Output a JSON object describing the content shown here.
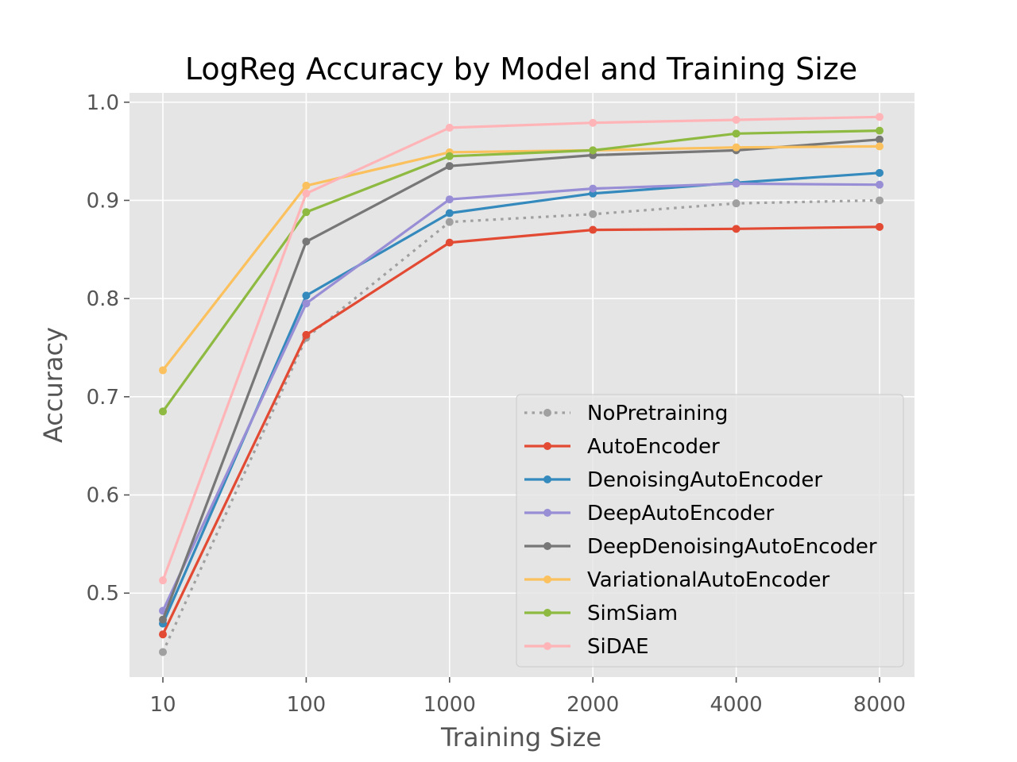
{
  "chart_data": {
    "type": "line",
    "title": "LogReg Accuracy by Model and Training Size",
    "xlabel": "Training Size",
    "ylabel": "Accuracy",
    "categories": [
      "10",
      "100",
      "1000",
      "2000",
      "4000",
      "8000"
    ],
    "y_ticks": [
      "0.5",
      "0.6",
      "0.7",
      "0.8",
      "0.9",
      "1.0"
    ],
    "ylim": [
      0.4145,
      1.0095
    ],
    "grid": true,
    "legend_position": "lower-right",
    "series": [
      {
        "name": "NoPretraining",
        "color": "#a0a0a0",
        "dashed": true,
        "values": [
          0.44,
          0.76,
          0.878,
          0.886,
          0.897,
          0.9
        ]
      },
      {
        "name": "AutoEncoder",
        "color": "#e24a33",
        "dashed": false,
        "values": [
          0.458,
          0.763,
          0.857,
          0.87,
          0.871,
          0.873
        ]
      },
      {
        "name": "DenoisingAutoEncoder",
        "color": "#348abd",
        "dashed": false,
        "values": [
          0.469,
          0.803,
          0.887,
          0.907,
          0.918,
          0.928
        ]
      },
      {
        "name": "DeepAutoEncoder",
        "color": "#988ed5",
        "dashed": false,
        "values": [
          0.482,
          0.795,
          0.901,
          0.912,
          0.917,
          0.916
        ]
      },
      {
        "name": "DeepDenoisingAutoEncoder",
        "color": "#777777",
        "dashed": false,
        "values": [
          0.473,
          0.858,
          0.935,
          0.946,
          0.951,
          0.962
        ]
      },
      {
        "name": "VariationalAutoEncoder",
        "color": "#fbc15e",
        "dashed": false,
        "values": [
          0.727,
          0.915,
          0.949,
          0.951,
          0.954,
          0.955
        ]
      },
      {
        "name": "SimSiam",
        "color": "#8eba42",
        "dashed": false,
        "values": [
          0.685,
          0.888,
          0.945,
          0.951,
          0.968,
          0.971
        ]
      },
      {
        "name": "SiDAE",
        "color": "#ffb5b8",
        "dashed": false,
        "values": [
          0.513,
          0.907,
          0.974,
          0.979,
          0.982,
          0.985
        ]
      }
    ]
  }
}
